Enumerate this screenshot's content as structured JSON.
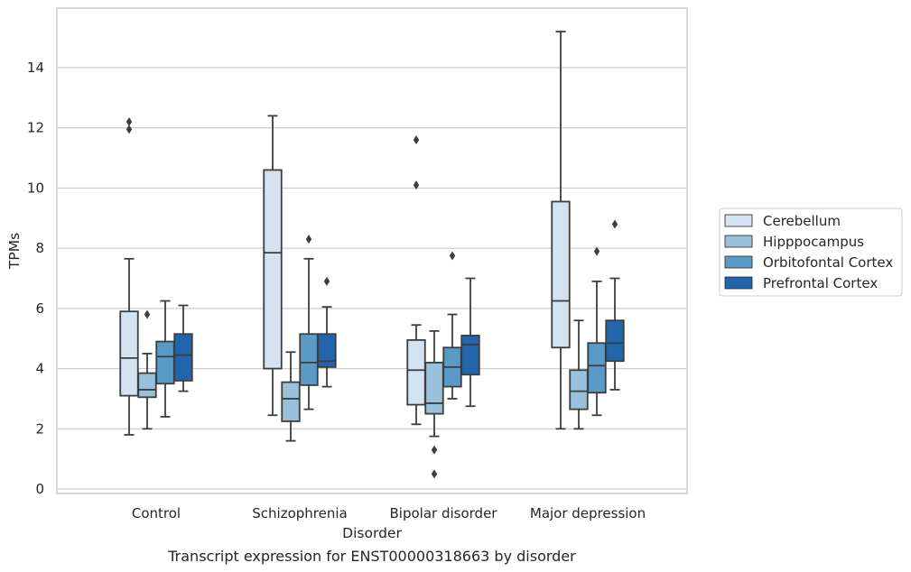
{
  "chart_data": {
    "type": "box",
    "xlabel": "Disorder",
    "ylabel": "TPMs",
    "caption": "Transcript expression for ENST00000318663 by disorder",
    "ylim": [
      -0.2,
      16.0
    ],
    "yticks": [
      0,
      2,
      4,
      6,
      8,
      10,
      12,
      14
    ],
    "grid": "horizontal",
    "legend_position": "right",
    "categories": [
      "Control",
      "Schizophrenia",
      "Bipolar disorder",
      "Major depression"
    ],
    "series": [
      {
        "name": "Cerebellum",
        "color": "#d4e3f2",
        "boxes": [
          {
            "whislo": 1.8,
            "q1": 3.1,
            "med": 4.35,
            "q3": 5.9,
            "whishi": 7.65,
            "fliers": [
              12.2,
              11.95
            ]
          },
          {
            "whislo": 2.45,
            "q1": 4.0,
            "med": 7.85,
            "q3": 10.6,
            "whishi": 12.4,
            "fliers": []
          },
          {
            "whislo": 2.15,
            "q1": 2.8,
            "med": 3.95,
            "q3": 4.95,
            "whishi": 5.45,
            "fliers": [
              11.6,
              10.1
            ]
          },
          {
            "whislo": 2.0,
            "q1": 4.7,
            "med": 6.25,
            "q3": 9.55,
            "whishi": 15.2,
            "fliers": []
          }
        ]
      },
      {
        "name": "Hipppocampus",
        "color": "#99c1dc",
        "boxes": [
          {
            "whislo": 2.0,
            "q1": 3.05,
            "med": 3.3,
            "q3": 3.85,
            "whishi": 4.5,
            "fliers": [
              5.8
            ]
          },
          {
            "whislo": 1.6,
            "q1": 2.25,
            "med": 3.0,
            "q3": 3.55,
            "whishi": 4.55,
            "fliers": []
          },
          {
            "whislo": 1.75,
            "q1": 2.5,
            "med": 2.85,
            "q3": 4.2,
            "whishi": 5.25,
            "fliers": [
              1.3,
              0.5
            ]
          },
          {
            "whislo": 2.0,
            "q1": 2.65,
            "med": 3.25,
            "q3": 3.95,
            "whishi": 5.6,
            "fliers": []
          }
        ]
      },
      {
        "name": "Orbitofontal Cortex",
        "color": "#5a9ac6",
        "boxes": [
          {
            "whislo": 2.4,
            "q1": 3.5,
            "med": 4.4,
            "q3": 4.9,
            "whishi": 6.25,
            "fliers": []
          },
          {
            "whislo": 2.65,
            "q1": 3.45,
            "med": 4.2,
            "q3": 5.15,
            "whishi": 7.65,
            "fliers": [
              8.3
            ]
          },
          {
            "whislo": 3.0,
            "q1": 3.4,
            "med": 4.05,
            "q3": 4.7,
            "whishi": 5.8,
            "fliers": [
              7.75
            ]
          },
          {
            "whislo": 2.45,
            "q1": 3.2,
            "med": 4.1,
            "q3": 4.85,
            "whishi": 6.9,
            "fliers": [
              7.9
            ]
          }
        ]
      },
      {
        "name": "Prefrontal Cortex",
        "color": "#2166ac",
        "boxes": [
          {
            "whislo": 3.25,
            "q1": 3.6,
            "med": 4.45,
            "q3": 5.15,
            "whishi": 6.1,
            "fliers": []
          },
          {
            "whislo": 3.4,
            "q1": 4.05,
            "med": 4.25,
            "q3": 5.15,
            "whishi": 6.05,
            "fliers": [
              6.9
            ]
          },
          {
            "whislo": 2.75,
            "q1": 3.8,
            "med": 4.8,
            "q3": 5.1,
            "whishi": 7.0,
            "fliers": []
          },
          {
            "whislo": 3.3,
            "q1": 4.25,
            "med": 4.85,
            "q3": 5.6,
            "whishi": 7.0,
            "fliers": [
              8.8
            ]
          }
        ]
      }
    ]
  }
}
